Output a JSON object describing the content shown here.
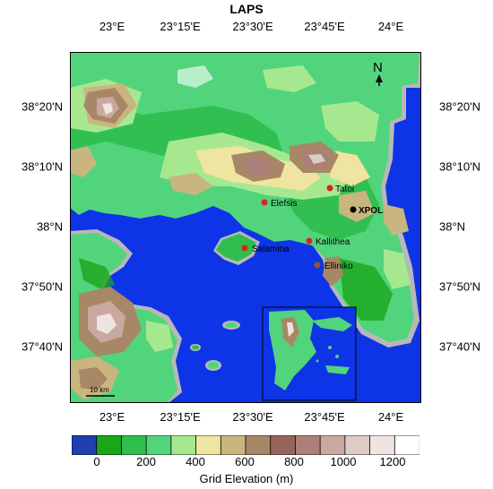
{
  "title": "LAPS",
  "lon_ticks": [
    "23°E",
    "23°15'E",
    "23°30'E",
    "23°45'E",
    "24°E"
  ],
  "lat_ticks": [
    "38°20'N",
    "38°10'N",
    "38°N",
    "37°50'N",
    "37°40'N"
  ],
  "north_label": "N",
  "scale_label": "10 km",
  "colorbar": {
    "title": "Grid Elevation (m)",
    "labels": [
      "0",
      "200",
      "400",
      "600",
      "800",
      "1000",
      "1200"
    ],
    "colors": [
      "#1f3fae",
      "#1aa51a",
      "#2fbd4e",
      "#52d47c",
      "#a6e890",
      "#efe4a0",
      "#c9b67e",
      "#a88766",
      "#97645c",
      "#aa8079",
      "#c9a8a0",
      "#ddccc6",
      "#eee4e0",
      "#ffffff"
    ]
  },
  "map_colors": {
    "sea": "#0d34e6",
    "coast": "#b8b8b8"
  },
  "stations": [
    {
      "name": "Tatoi",
      "color": "#e02020"
    },
    {
      "name": "Elefsis",
      "color": "#e02020"
    },
    {
      "name": "XPOL",
      "color": "#000000"
    },
    {
      "name": "Kallithea",
      "color": "#e02020"
    },
    {
      "name": "Salamina",
      "color": "#e02020"
    },
    {
      "name": "Elliniko",
      "color": "#8b5a2b"
    }
  ]
}
